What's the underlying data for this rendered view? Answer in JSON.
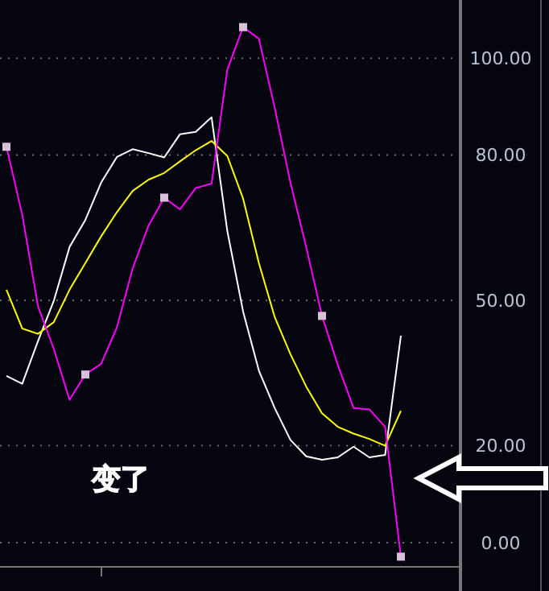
{
  "chart_data": {
    "type": "line",
    "categories": [
      null,
      null,
      null,
      null,
      null,
      null,
      null,
      null,
      null,
      null,
      null,
      null,
      null,
      null,
      null,
      null,
      null,
      null,
      null,
      null,
      null,
      null,
      null,
      null,
      null,
      null
    ],
    "ylim": [
      -5,
      112
    ],
    "yticks": [
      {
        "value": 0,
        "label": "0.00"
      },
      {
        "value": 20,
        "label": "20.00"
      },
      {
        "value": 50,
        "label": "50.00"
      },
      {
        "value": 80,
        "label": "80.00"
      },
      {
        "value": 100,
        "label": "100.00"
      }
    ],
    "grid": "y",
    "tick_labels": "y",
    "line_style": "solid",
    "annotations": [
      "变了"
    ],
    "series": [
      {
        "color": "#ffffff",
        "values": [
          34.4,
          32.8,
          41.6,
          49.9,
          61,
          66.6,
          74.3,
          79.6,
          81.2,
          80.4,
          79.5,
          84.3,
          84.8,
          87.8,
          64.3,
          47.7,
          35.5,
          27.8,
          21.2,
          17.8,
          17.1,
          17.6,
          19.8,
          17.6,
          18.1,
          42.7
        ]
      },
      {
        "color": "#ffff00",
        "values": [
          52.2,
          44.2,
          43.1,
          45.5,
          52.2,
          57.7,
          63.2,
          68.2,
          72.6,
          74.9,
          76.3,
          78.7,
          81,
          82.9,
          79.8,
          71,
          57.7,
          46.6,
          38.9,
          32.2,
          26.7,
          23.9,
          22.5,
          21.4,
          20,
          27.2
        ]
      },
      {
        "color": "#ff00ff",
        "values": [
          81.7,
          67.7,
          48.8,
          40,
          29.5,
          34.7,
          36.9,
          44.4,
          56.6,
          65.4,
          71.2,
          68.8,
          73.2,
          74.1,
          97.6,
          106.4,
          104,
          89.8,
          74.3,
          61,
          46.8,
          36.7,
          27.8,
          27.5,
          23.9,
          -2.9
        ]
      }
    ]
  }
}
